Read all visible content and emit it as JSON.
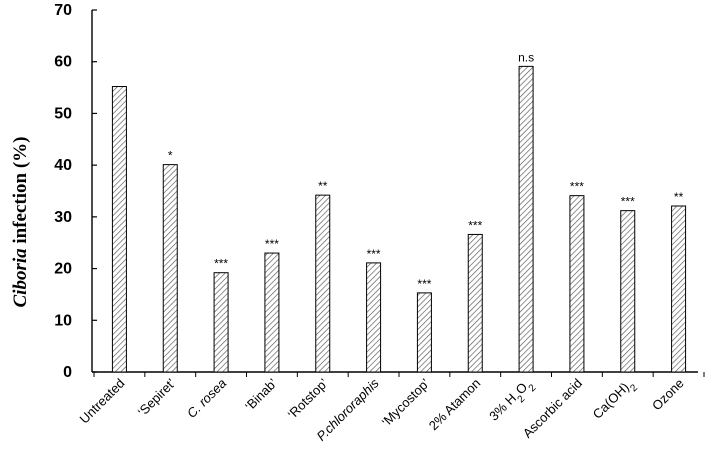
{
  "chart_data": {
    "type": "bar",
    "title": "",
    "xlabel": "",
    "ylabel_italic": "Ciboria",
    "ylabel_rest": " infection (%)",
    "ylim": [
      0,
      70
    ],
    "yticks": [
      0,
      10,
      20,
      30,
      40,
      50,
      60,
      70
    ],
    "grid": false,
    "categories": [
      {
        "parts": [
          {
            "t": "Untreated"
          }
        ]
      },
      {
        "parts": [
          {
            "t": "‘Sepiret’"
          }
        ]
      },
      {
        "parts": [
          {
            "t": "C. rosea",
            "i": true
          }
        ]
      },
      {
        "parts": [
          {
            "t": "‘Binab’"
          }
        ]
      },
      {
        "parts": [
          {
            "t": "‘Rotstop’"
          }
        ]
      },
      {
        "parts": [
          {
            "t": "P.chlororaphis",
            "i": true
          }
        ]
      },
      {
        "parts": [
          {
            "t": "‘Mycostop’"
          }
        ]
      },
      {
        "parts": [
          {
            "t": "2% Atamon"
          }
        ]
      },
      {
        "parts": [
          {
            "t": "3% H"
          },
          {
            "t": "2",
            "sub": true
          },
          {
            "t": "O"
          },
          {
            "t": "2",
            "sub": true
          }
        ]
      },
      {
        "parts": [
          {
            "t": "Ascorbic acid"
          }
        ]
      },
      {
        "parts": [
          {
            "t": "Ca(OH)"
          },
          {
            "t": "2",
            "sub": true
          }
        ]
      },
      {
        "parts": [
          {
            "t": "Ozone"
          }
        ]
      }
    ],
    "values": [
      55.2,
      40.1,
      19.2,
      23.0,
      34.2,
      21.1,
      15.3,
      26.6,
      59.1,
      34.1,
      31.2,
      32.1
    ],
    "significance": [
      "",
      "*",
      "***",
      "***",
      "**",
      "***",
      "***",
      "***",
      "n.s",
      "***",
      "***",
      "**"
    ]
  }
}
